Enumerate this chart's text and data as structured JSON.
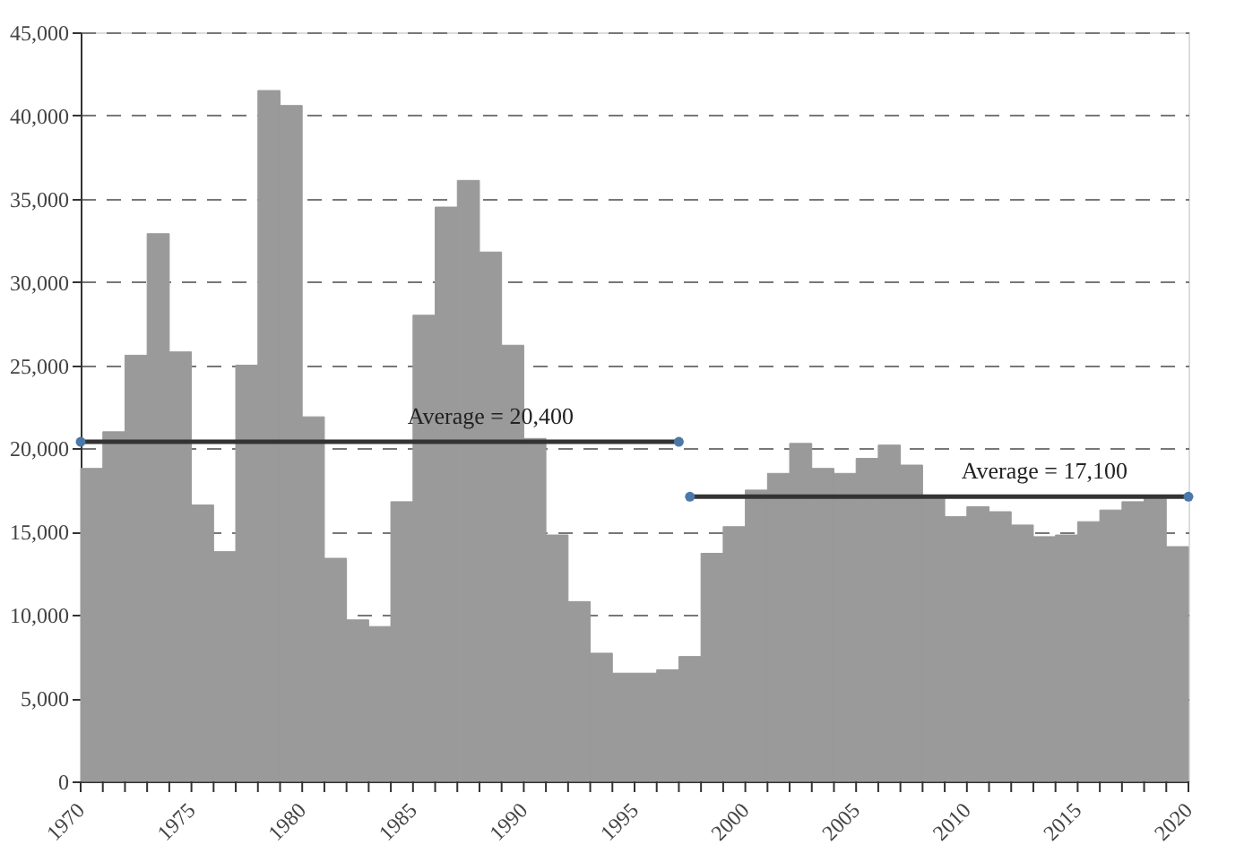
{
  "chart_data": {
    "type": "histogram",
    "bins": [
      1970,
      1971,
      1972,
      1973,
      1974,
      1975,
      1976,
      1977,
      1978,
      1979,
      1980,
      1981,
      1982,
      1983,
      1984,
      1985,
      1986,
      1987,
      1988,
      1989,
      1990,
      1991,
      1992,
      1993,
      1994,
      1995,
      1996,
      1997,
      1998,
      1999,
      2000,
      2001,
      2002,
      2003,
      2004,
      2005,
      2006,
      2007,
      2008,
      2009,
      2010,
      2011,
      2012,
      2013,
      2014,
      2015,
      2016,
      2017,
      2018,
      2019,
      2020
    ],
    "values": [
      18800,
      21000,
      25600,
      32900,
      25800,
      16600,
      13800,
      25000,
      41500,
      40600,
      21900,
      13400,
      9700,
      9300,
      16800,
      28000,
      34500,
      36100,
      31800,
      26200,
      20600,
      14800,
      10800,
      7700,
      6500,
      6500,
      6700,
      7500,
      13700,
      15300,
      17500,
      18500,
      20300,
      18800,
      18500,
      19400,
      20200,
      19000,
      17000,
      15900,
      16500,
      16200,
      15400,
      14700,
      14800,
      15600,
      16300,
      16800,
      17000,
      14100
    ],
    "color": "#9a9a9a",
    "series": [
      {
        "type": "line",
        "x": [
          1970,
          1997
        ],
        "values": [
          20400,
          20400
        ],
        "color": "#333333"
      },
      {
        "type": "line",
        "x": [
          1997.5,
          2020
        ],
        "values": [
          17100,
          17100
        ],
        "color": "#333333"
      }
    ],
    "marker": "circle",
    "annotations": [
      {
        "text": "Average = 20,400",
        "x": 1988.5,
        "y": 20400
      },
      {
        "text": "Average = 17,100",
        "x": 2013.5,
        "y": 17100
      }
    ],
    "xlim": [
      1970,
      2020
    ],
    "xticks": [
      {
        "value": 1970,
        "label": "1970"
      },
      {
        "value": 1971,
        "label": null
      },
      {
        "value": 1972,
        "label": null
      },
      {
        "value": 1973,
        "label": null
      },
      {
        "value": 1974,
        "label": null
      },
      {
        "value": 1975,
        "label": "1975"
      },
      {
        "value": 1976,
        "label": null
      },
      {
        "value": 1977,
        "label": null
      },
      {
        "value": 1978,
        "label": null
      },
      {
        "value": 1979,
        "label": null
      },
      {
        "value": 1980,
        "label": "1980"
      },
      {
        "value": 1981,
        "label": null
      },
      {
        "value": 1982,
        "label": null
      },
      {
        "value": 1983,
        "label": null
      },
      {
        "value": 1984,
        "label": null
      },
      {
        "value": 1985,
        "label": "1985"
      },
      {
        "value": 1986,
        "label": null
      },
      {
        "value": 1987,
        "label": null
      },
      {
        "value": 1988,
        "label": null
      },
      {
        "value": 1989,
        "label": null
      },
      {
        "value": 1990,
        "label": "1990"
      },
      {
        "value": 1991,
        "label": null
      },
      {
        "value": 1992,
        "label": null
      },
      {
        "value": 1993,
        "label": null
      },
      {
        "value": 1994,
        "label": null
      },
      {
        "value": 1995,
        "label": "1995"
      },
      {
        "value": 1996,
        "label": null
      },
      {
        "value": 1997,
        "label": null
      },
      {
        "value": 1998,
        "label": null
      },
      {
        "value": 1999,
        "label": null
      },
      {
        "value": 2000,
        "label": "2000"
      },
      {
        "value": 2001,
        "label": null
      },
      {
        "value": 2002,
        "label": null
      },
      {
        "value": 2003,
        "label": null
      },
      {
        "value": 2004,
        "label": null
      },
      {
        "value": 2005,
        "label": "2005"
      },
      {
        "value": 2006,
        "label": null
      },
      {
        "value": 2007,
        "label": null
      },
      {
        "value": 2008,
        "label": null
      },
      {
        "value": 2009,
        "label": null
      },
      {
        "value": 2010,
        "label": "2010"
      },
      {
        "value": 2011,
        "label": null
      },
      {
        "value": 2012,
        "label": null
      },
      {
        "value": 2013,
        "label": null
      },
      {
        "value": 2014,
        "label": null
      },
      {
        "value": 2015,
        "label": "2015"
      },
      {
        "value": 2016,
        "label": null
      },
      {
        "value": 2017,
        "label": null
      },
      {
        "value": 2018,
        "label": null
      },
      {
        "value": 2019,
        "label": null
      },
      {
        "value": 2020,
        "label": "2020"
      }
    ],
    "ylim": [
      0,
      45000
    ],
    "yticks": [
      {
        "value": 0,
        "label": "0"
      },
      {
        "value": 5000,
        "label": "5,000"
      },
      {
        "value": 10000,
        "label": "10,000"
      },
      {
        "value": 15000,
        "label": "15,000"
      },
      {
        "value": 20000,
        "label": "20,000"
      },
      {
        "value": 25000,
        "label": "25,000"
      },
      {
        "value": 30000,
        "label": "30,000"
      },
      {
        "value": 35000,
        "label": "35,000"
      },
      {
        "value": 40000,
        "label": "40,000"
      },
      {
        "value": 45000,
        "label": "45,000"
      }
    ],
    "grid": "y",
    "line_style": "solid"
  }
}
